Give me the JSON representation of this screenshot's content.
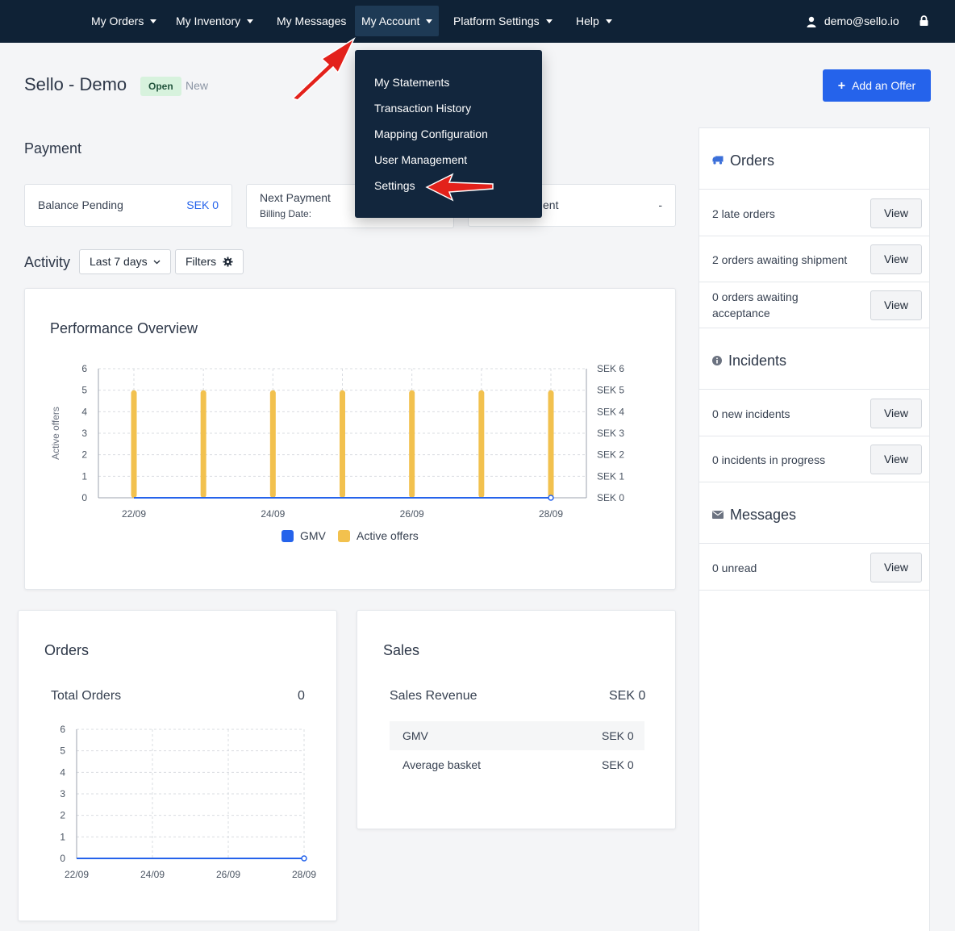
{
  "nav": {
    "items": [
      {
        "label": "My Orders"
      },
      {
        "label": "My Inventory"
      },
      {
        "label": "My Messages"
      },
      {
        "label": "My Account"
      },
      {
        "label": "Platform Settings"
      },
      {
        "label": "Help"
      }
    ],
    "user_email": "demo@sello.io"
  },
  "account_menu": {
    "items": [
      {
        "label": "My Statements"
      },
      {
        "label": "Transaction History"
      },
      {
        "label": "Mapping Configuration"
      },
      {
        "label": "User Management"
      },
      {
        "label": "Settings"
      }
    ]
  },
  "header": {
    "title": "Sello - Demo",
    "status_badge": "Open",
    "status_secondary": "New",
    "add_offer_label": "Add an Offer"
  },
  "payment": {
    "title": "Payment",
    "balance_label": "Balance Pending",
    "balance_value": "SEK 0",
    "next_payment_label": "Next Payment",
    "billing_date_label": "Billing Date:",
    "third_label": "ent",
    "third_value": "-"
  },
  "activity": {
    "title": "Activity",
    "range_label": "Last 7 days",
    "filters_label": "Filters"
  },
  "performance": {
    "title": "Performance Overview"
  },
  "orders_card": {
    "title": "Orders",
    "total_label": "Total Orders",
    "total_value": "0"
  },
  "sales_card": {
    "title": "Sales",
    "revenue_label": "Sales Revenue",
    "revenue_value": "SEK 0",
    "rows": [
      {
        "label": "GMV",
        "value": "SEK 0"
      },
      {
        "label": "Average basket",
        "value": "SEK 0"
      }
    ]
  },
  "right_panel": {
    "orders": {
      "title": "Orders",
      "rows": [
        {
          "label": "2 late orders",
          "button": "View"
        },
        {
          "label": "2 orders awaiting shipment",
          "button": "View"
        },
        {
          "label": "0 orders awaiting acceptance",
          "button": "View"
        }
      ]
    },
    "incidents": {
      "title": "Incidents",
      "rows": [
        {
          "label": "0 new incidents",
          "button": "View"
        },
        {
          "label": "0 incidents in progress",
          "button": "View"
        }
      ]
    },
    "messages": {
      "title": "Messages",
      "rows": [
        {
          "label": "0 unread",
          "button": "View"
        }
      ]
    }
  },
  "colors": {
    "nav_bg": "#0f2236",
    "accent": "#2563eb",
    "active_offers": "#f2c14e",
    "gmv": "#2563eb"
  },
  "chart_data": [
    {
      "type": "bar",
      "x": [
        "22/09",
        "23/09",
        "24/09",
        "25/09",
        "26/09",
        "27/09",
        "28/09"
      ],
      "x_tick_labels": [
        "22/09",
        "24/09",
        "26/09",
        "28/09"
      ],
      "ylabel": "Active offers",
      "ylim": [
        0,
        6
      ],
      "y_ticks": [
        "0",
        "1",
        "2",
        "3",
        "4",
        "5",
        "6"
      ],
      "y2_ticks": [
        "SEK 0",
        "SEK 1",
        "SEK 2",
        "SEK 3",
        "SEK 4",
        "SEK 5",
        "SEK 6"
      ],
      "y2lim": [
        0,
        6
      ],
      "series": [
        {
          "name": "GMV",
          "type": "line",
          "values": [
            0,
            0,
            0,
            0,
            0,
            0,
            0
          ]
        },
        {
          "name": "Active offers",
          "type": "bar",
          "values": [
            5,
            5,
            5,
            5,
            5,
            5,
            5
          ]
        }
      ],
      "legend": "bottom-center",
      "grid": true
    },
    {
      "type": "line",
      "x": [
        "22/09",
        "23/09",
        "24/09",
        "25/09",
        "26/09",
        "27/09",
        "28/09"
      ],
      "x_tick_labels": [
        "22/09",
        "24/09",
        "26/09",
        "28/09"
      ],
      "ylim": [
        0,
        6
      ],
      "y_ticks": [
        "0",
        "1",
        "2",
        "3",
        "4",
        "5",
        "6"
      ],
      "series": [
        {
          "values": [
            0,
            0,
            0,
            0,
            0,
            0,
            0
          ]
        }
      ],
      "grid": true
    }
  ]
}
